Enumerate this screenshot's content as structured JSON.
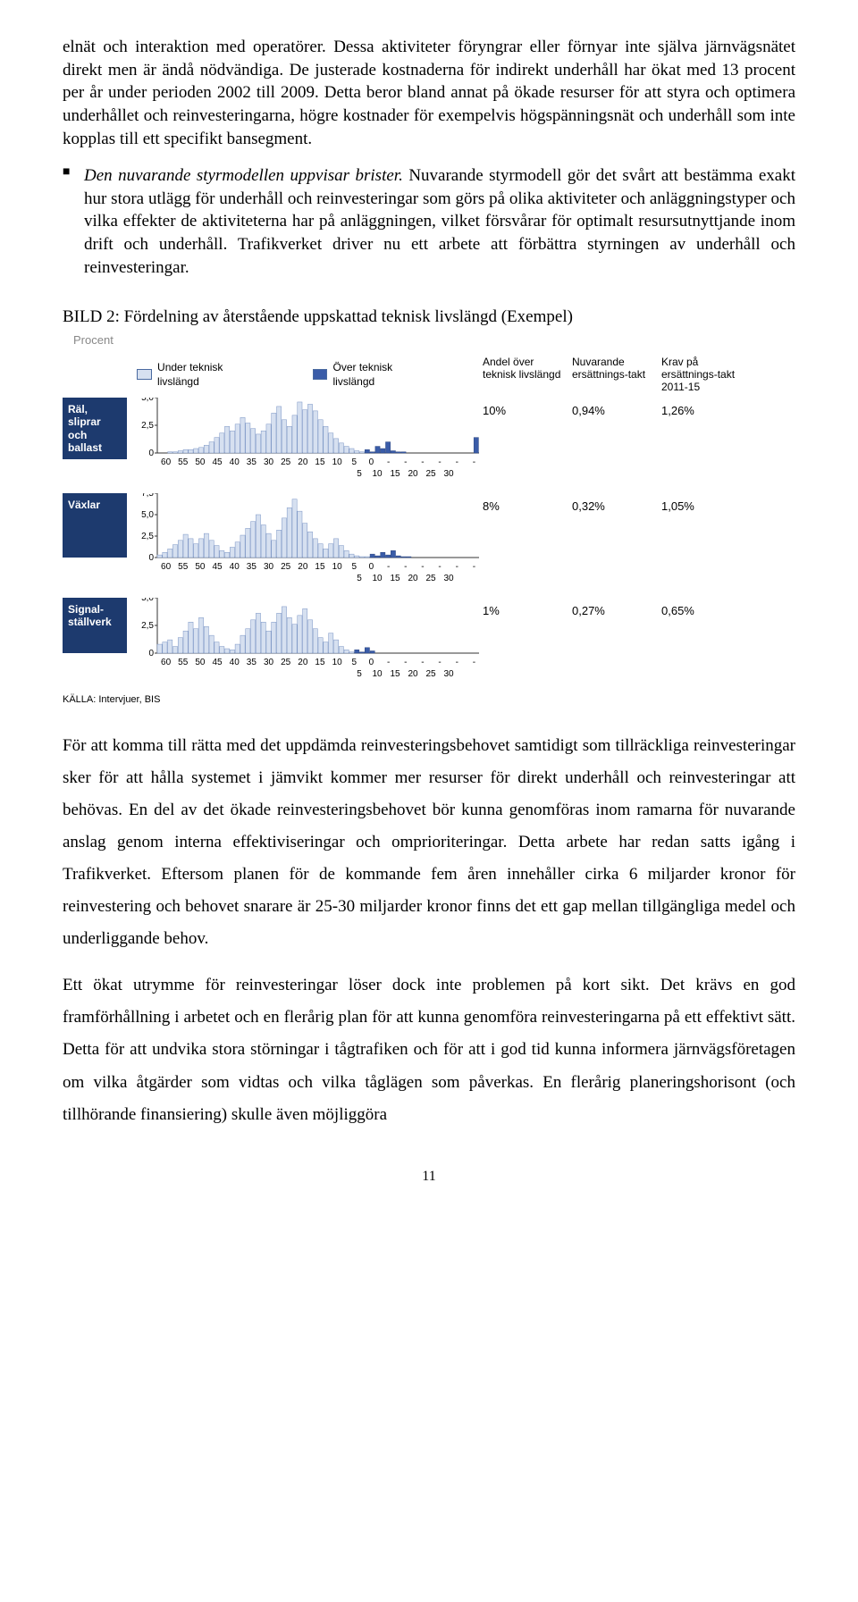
{
  "paragraphs": {
    "p1": "elnät och interaktion med operatörer. Dessa aktiviteter föryngrar eller förnyar inte själva järnvägsnätet direkt men är ändå nödvändiga. De justerade kostnaderna för indirekt underhåll har ökat med 13 procent per år under perioden 2002 till 2009. Detta beror bland annat på ökade resurser för att styra och optimera underhållet och reinvesteringarna, högre kostnader för exempelvis högspänningsnät och underhåll som inte kopplas till ett specifikt bansegment.",
    "bullet_lead": "Den nuvarande styrmodellen uppvisar brister.",
    "bullet_rest": " Nuvarande styrmodell gör det svårt att bestämma exakt hur stora utlägg för underhåll och reinvesteringar som görs på olika aktiviteter och anläggningstyper och vilka effekter de aktiviteterna har på anläggningen, vilket försvårar för optimalt resursutnyttjande inom drift och underhåll. Trafikverket driver nu ett arbete att förbättra styrningen av underhåll och reinvesteringar.",
    "p3": "För att komma till rätta med det uppdämda reinvesteringsbehovet samtidigt som tillräckliga reinvesteringar sker för att hålla systemet i jämvikt kommer mer resurser för direkt underhåll och reinvesteringar att behövas. En del av det ökade reinvesteringsbehovet bör kunna genomföras inom ramarna för nuvarande anslag genom interna effektiviseringar och omprioriteringar. Detta arbete har redan satts igång i Trafikverket. Eftersom planen för de kommande fem åren innehåller cirka 6 miljarder kronor för reinvestering och behovet snarare är 25-30 miljarder kronor finns det ett gap mellan tillgängliga medel och underliggande behov.",
    "p4": "Ett ökat utrymme för reinvesteringar löser dock inte problemen på kort sikt. Det krävs en god framförhållning i arbetet och en flerårig plan för att kunna genomföra reinvesteringarna på ett effektivt sätt. Detta för att undvika stora störningar i tågtrafiken och för att i god tid kunna informera järnvägsföretagen om vilka åtgärder som vidtas och vilka tåglägen som påverkas. En flerårig planeringshorisont (och tillhörande finansiering) skulle även möjliggöra"
  },
  "figure": {
    "caption": "BILD 2: Fördelning av återstående uppskattad teknisk livslängd (Exempel)",
    "procent_label": "Procent",
    "legend_under": "Under teknisk livslängd",
    "legend_over": "Över teknisk livslängd",
    "header_andel": "Andel över teknisk livslängd",
    "header_nuvarande": "Nuvarande ersättnings-takt",
    "header_krav": "Krav på ersättnings-takt 2011-15",
    "source": "KÄLLA: Intervjuer, BIS",
    "colors": {
      "light_fill": "#d6e0f0",
      "light_stroke": "#7a94c4",
      "dark_fill": "#3a5ca8",
      "dark_stroke": "#2a4580",
      "axis": "#333333",
      "rowlabel_bg": "#1d3a6e"
    },
    "x_labels_top": [
      "60",
      "55",
      "50",
      "45",
      "40",
      "35",
      "30",
      "25",
      "20",
      "15",
      "10",
      "5",
      "0",
      "-",
      "-",
      "-",
      "-",
      "-",
      "-"
    ],
    "x_labels_bottom": [
      "5",
      "10",
      "15",
      "20",
      "25",
      "30"
    ],
    "rows": [
      {
        "label": "Räl, sliprar och ballast",
        "andel": "10%",
        "nuvarande": "0,94%",
        "krav": "1,26%",
        "ymax": 5.0,
        "yticks": [
          "5,0",
          "2,5",
          "0"
        ],
        "under": [
          0.0,
          0.0,
          0.1,
          0.1,
          0.2,
          0.3,
          0.3,
          0.4,
          0.5,
          0.7,
          1.0,
          1.4,
          1.8,
          2.4,
          2.0,
          2.6,
          3.2,
          2.7,
          2.2,
          1.7,
          2.0,
          2.6,
          3.6,
          4.2,
          3.0,
          2.4,
          3.4,
          4.6,
          3.9,
          4.4,
          3.8,
          3.0,
          2.4,
          1.8,
          1.3,
          0.9,
          0.6,
          0.4,
          0.2,
          0.1
        ],
        "over": [
          0.3,
          0.1,
          0.6,
          0.4,
          1.0,
          0.2,
          0.1,
          0.1,
          0.0,
          0.0,
          0.0,
          0.0,
          0.0,
          0.0,
          0.0,
          0.0,
          0.0,
          0.0,
          0.0,
          0.0,
          0.0,
          1.4
        ]
      },
      {
        "label": "Växlar",
        "andel": "8%",
        "nuvarande": "0,32%",
        "krav": "1,05%",
        "ymax": 7.5,
        "yticks": [
          "7,5",
          "5,0",
          "2,5",
          "0"
        ],
        "under": [
          0.3,
          0.6,
          1.0,
          1.5,
          2.0,
          2.7,
          2.2,
          1.6,
          2.2,
          2.8,
          2.0,
          1.4,
          0.8,
          0.6,
          1.2,
          1.8,
          2.6,
          3.4,
          4.2,
          5.0,
          3.8,
          2.8,
          2.0,
          3.2,
          4.6,
          5.8,
          6.8,
          5.4,
          4.0,
          3.0,
          2.2,
          1.6,
          1.0,
          1.6,
          2.2,
          1.4,
          0.8,
          0.4,
          0.2,
          0.1,
          0.1
        ],
        "over": [
          0.4,
          0.2,
          0.6,
          0.3,
          0.8,
          0.2,
          0.1,
          0.1,
          0.0,
          0.0,
          0.0,
          0.0
        ]
      },
      {
        "label": "Signal-ställverk",
        "andel": "1%",
        "nuvarande": "0,27%",
        "krav": "0,65%",
        "ymax": 5.0,
        "yticks": [
          "5,0",
          "2,5",
          "0"
        ],
        "under": [
          0.8,
          1.0,
          1.2,
          0.6,
          1.4,
          2.0,
          2.8,
          2.2,
          3.2,
          2.4,
          1.6,
          1.0,
          0.6,
          0.4,
          0.3,
          0.8,
          1.6,
          2.2,
          3.0,
          3.6,
          2.8,
          2.0,
          2.8,
          3.6,
          4.2,
          3.2,
          2.6,
          3.4,
          4.0,
          3.0,
          2.2,
          1.4,
          1.0,
          1.8,
          1.2,
          0.6,
          0.3,
          0.1
        ],
        "over": [
          0.3,
          0.1,
          0.5,
          0.2
        ]
      }
    ]
  },
  "page_number": "11"
}
